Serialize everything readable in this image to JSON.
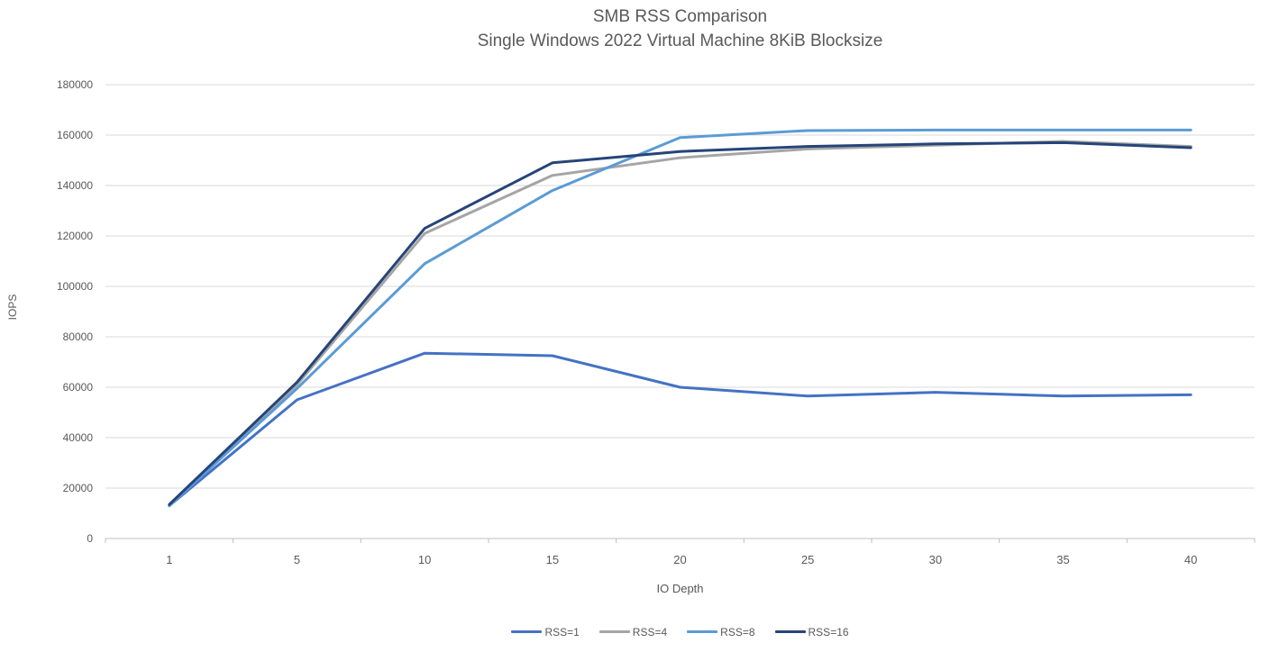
{
  "chart_data": {
    "type": "line",
    "title": "SMB RSS Comparison",
    "subtitle": "Single Windows 2022 Virtual Machine 8KiB Blocksize",
    "xlabel": "IO Depth",
    "ylabel": "IOPS",
    "categories": [
      1,
      5,
      10,
      15,
      20,
      25,
      30,
      35,
      40
    ],
    "y_ticks": [
      0,
      20000,
      40000,
      60000,
      80000,
      100000,
      120000,
      140000,
      160000,
      180000
    ],
    "ylim": [
      0,
      180000
    ],
    "grid": true,
    "legend_position": "bottom",
    "series": [
      {
        "name": "RSS=1",
        "color": "#4472C4",
        "values": [
          13000,
          55000,
          73500,
          72500,
          60000,
          56500,
          58000,
          56500,
          57000
        ]
      },
      {
        "name": "RSS=4",
        "color": "#A5A5A5",
        "values": [
          13000,
          61000,
          121000,
          144000,
          151000,
          154500,
          156000,
          157500,
          155500
        ]
      },
      {
        "name": "RSS=8",
        "color": "#5B9BD5",
        "values": [
          13000,
          59500,
          109000,
          138000,
          159000,
          161800,
          162000,
          162000,
          162000
        ]
      },
      {
        "name": "RSS=16",
        "color": "#264478",
        "values": [
          13500,
          62000,
          123000,
          149000,
          153500,
          155500,
          156500,
          157000,
          155000
        ]
      }
    ]
  },
  "style": {
    "title_color": "#595959",
    "axis_text_color": "#595959",
    "gridline_color": "#D9D9D9",
    "axis_line_color": "#BFBFBF",
    "background": "#FFFFFF"
  }
}
